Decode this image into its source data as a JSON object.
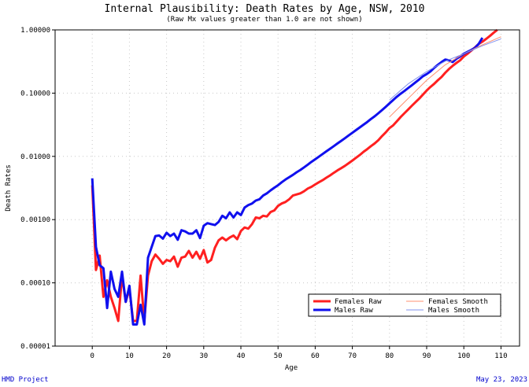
{
  "chart_data": {
    "type": "line",
    "title": "Internal Plausibility: Death Rates by Age, NSW, 2010",
    "subtitle": "(Raw Mx values greater than 1.0 are not shown)",
    "xlabel": "Age",
    "ylabel": "Death Rates",
    "xlim": [
      -10,
      115
    ],
    "ylim": [
      1e-05,
      1.0
    ],
    "yscale": "log",
    "x_ticks": [
      0,
      10,
      20,
      30,
      40,
      50,
      60,
      70,
      80,
      90,
      100,
      110
    ],
    "x_tick_labels": [
      "0",
      "10",
      "20",
      "30",
      "40",
      "50",
      "60",
      "70",
      "80",
      "90",
      "100",
      "110"
    ],
    "y_ticks": [
      1e-05,
      0.0001,
      0.001,
      0.01,
      0.1,
      1.0
    ],
    "y_tick_labels": [
      "0.00001",
      "0.00010",
      "0.00100",
      "0.01000",
      "0.10000",
      "1.00000"
    ],
    "grid": true,
    "legend_position": "bottom-right",
    "series": [
      {
        "name": "Females Raw",
        "color": "#ff2020",
        "style": "thick",
        "x": [
          0,
          1,
          2,
          3,
          4,
          5,
          6,
          7,
          8,
          9,
          10,
          11,
          12,
          13,
          14,
          15,
          16,
          17,
          18,
          19,
          20,
          21,
          22,
          23,
          24,
          25,
          26,
          27,
          28,
          29,
          30,
          31,
          32,
          33,
          34,
          35,
          36,
          37,
          38,
          39,
          40,
          41,
          42,
          43,
          44,
          45,
          46,
          47,
          48,
          49,
          50,
          51,
          52,
          53,
          54,
          55,
          56,
          57,
          58,
          59,
          60,
          61,
          62,
          63,
          64,
          65,
          66,
          67,
          68,
          69,
          70,
          71,
          72,
          73,
          74,
          75,
          76,
          77,
          78,
          79,
          80,
          81,
          82,
          83,
          84,
          85,
          86,
          87,
          88,
          89,
          90,
          91,
          92,
          93,
          94,
          95,
          96,
          97,
          98,
          99,
          100,
          101,
          102,
          103,
          104,
          105,
          106,
          107,
          108,
          109
        ],
        "y": [
          0.0035,
          0.00016,
          0.00027,
          6e-05,
          0.00011,
          6e-05,
          4e-05,
          2.5e-05,
          0.00013,
          5e-05,
          8e-05,
          2.5e-05,
          2.5e-05,
          0.00013,
          2.5e-05,
          0.00013,
          0.00022,
          0.00028,
          0.00024,
          0.0002,
          0.00023,
          0.00022,
          0.00026,
          0.00018,
          0.00025,
          0.00026,
          0.00032,
          0.00025,
          0.00031,
          0.00024,
          0.00033,
          0.00021,
          0.00023,
          0.00036,
          0.00047,
          0.00052,
          0.00047,
          0.00052,
          0.00056,
          0.00049,
          0.00066,
          0.00075,
          0.00072,
          0.00085,
          0.00108,
          0.00105,
          0.00115,
          0.00112,
          0.00132,
          0.0014,
          0.00165,
          0.0018,
          0.0019,
          0.0021,
          0.0024,
          0.0025,
          0.0026,
          0.0028,
          0.0031,
          0.0033,
          0.0036,
          0.0039,
          0.0042,
          0.0046,
          0.005,
          0.0055,
          0.006,
          0.0065,
          0.0071,
          0.0078,
          0.0086,
          0.0095,
          0.0105,
          0.0118,
          0.013,
          0.0145,
          0.016,
          0.018,
          0.021,
          0.024,
          0.028,
          0.031,
          0.036,
          0.042,
          0.048,
          0.055,
          0.063,
          0.072,
          0.082,
          0.095,
          0.11,
          0.125,
          0.14,
          0.16,
          0.18,
          0.21,
          0.24,
          0.27,
          0.3,
          0.33,
          0.38,
          0.42,
          0.47,
          0.53,
          0.6,
          0.65,
          0.72,
          0.8,
          0.9,
          1.0
        ]
      },
      {
        "name": "Males Raw",
        "color": "#1010ee",
        "style": "thick",
        "x": [
          0,
          1,
          2,
          3,
          4,
          5,
          6,
          7,
          8,
          9,
          10,
          11,
          12,
          13,
          14,
          15,
          16,
          17,
          18,
          19,
          20,
          21,
          22,
          23,
          24,
          25,
          26,
          27,
          28,
          29,
          30,
          31,
          32,
          33,
          34,
          35,
          36,
          37,
          38,
          39,
          40,
          41,
          42,
          43,
          44,
          45,
          46,
          47,
          48,
          49,
          50,
          51,
          52,
          53,
          54,
          55,
          56,
          57,
          58,
          59,
          60,
          61,
          62,
          63,
          64,
          65,
          66,
          67,
          68,
          69,
          70,
          71,
          72,
          73,
          74,
          75,
          76,
          77,
          78,
          79,
          80,
          81,
          82,
          83,
          84,
          85,
          86,
          87,
          88,
          89,
          90,
          91,
          92,
          93,
          94,
          95,
          96,
          97,
          98,
          99,
          100,
          101,
          102,
          103,
          104,
          105
        ],
        "y": [
          0.0045,
          0.00037,
          0.00019,
          0.00017,
          4e-05,
          0.00015,
          8e-05,
          6e-05,
          0.00015,
          5e-05,
          9e-05,
          2.2e-05,
          2.2e-05,
          4.5e-05,
          2.2e-05,
          0.00025,
          0.00037,
          0.00055,
          0.00056,
          0.0005,
          0.00062,
          0.00055,
          0.0006,
          0.00048,
          0.00068,
          0.00065,
          0.0006,
          0.0006,
          0.00068,
          0.00051,
          0.0008,
          0.00088,
          0.00085,
          0.00082,
          0.00092,
          0.00115,
          0.00105,
          0.0013,
          0.00108,
          0.0013,
          0.00118,
          0.00155,
          0.0017,
          0.0018,
          0.002,
          0.0021,
          0.0024,
          0.0026,
          0.0029,
          0.0032,
          0.0035,
          0.0039,
          0.0043,
          0.0047,
          0.0051,
          0.0056,
          0.0061,
          0.0067,
          0.0074,
          0.0082,
          0.009,
          0.0099,
          0.0109,
          0.012,
          0.0132,
          0.0145,
          0.016,
          0.0176,
          0.0194,
          0.0214,
          0.0236,
          0.026,
          0.0287,
          0.0317,
          0.035,
          0.039,
          0.043,
          0.048,
          0.054,
          0.061,
          0.069,
          0.078,
          0.088,
          0.098,
          0.108,
          0.12,
          0.133,
          0.148,
          0.165,
          0.185,
          0.2,
          0.22,
          0.25,
          0.28,
          0.31,
          0.34,
          0.33,
          0.31,
          0.35,
          0.38,
          0.42,
          0.45,
          0.48,
          0.52,
          0.6,
          0.75
        ]
      },
      {
        "name": "Females Smooth",
        "color": "#ff9070",
        "style": "thin",
        "x": [
          80,
          85,
          90,
          95,
          100,
          105,
          110
        ],
        "y": [
          0.042,
          0.082,
          0.16,
          0.28,
          0.42,
          0.58,
          0.78
        ]
      },
      {
        "name": "Males Smooth",
        "color": "#8090ee",
        "style": "thin",
        "x": [
          80,
          85,
          90,
          95,
          100,
          105,
          110
        ],
        "y": [
          0.078,
          0.14,
          0.22,
          0.32,
          0.42,
          0.56,
          0.72
        ]
      }
    ]
  },
  "footer": {
    "left": "HMD Project",
    "right": "May 23, 2023"
  }
}
